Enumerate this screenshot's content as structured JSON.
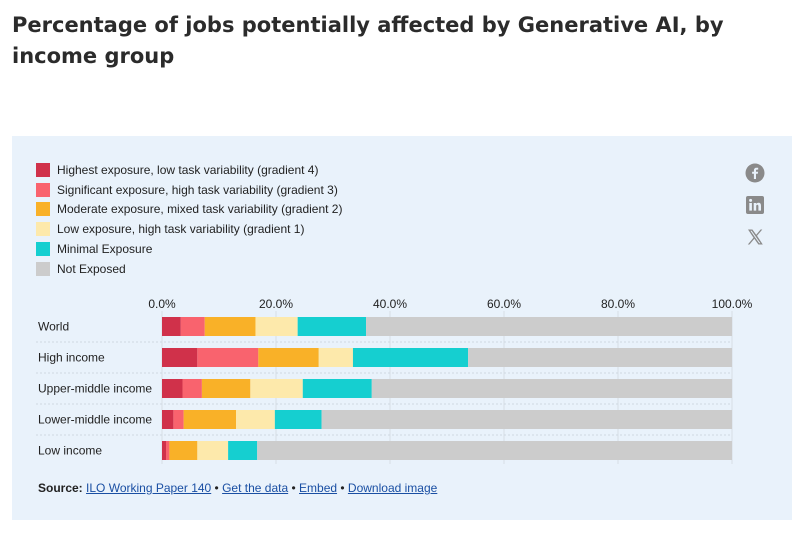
{
  "page_title": "Percentage of jobs potentially affected by Generative AI, by income group",
  "share_icons": [
    "facebook-icon",
    "linkedin-icon",
    "x-icon"
  ],
  "source": {
    "label": "Source:",
    "link_paper": "ILO Working Paper 140",
    "sep1": " • ",
    "link_data": "Get the data",
    "sep2": " • ",
    "link_embed": "Embed",
    "sep3": "  • ",
    "link_download": "Download image"
  },
  "chart_data": {
    "type": "bar",
    "orientation": "horizontal",
    "stacked": true,
    "title": "Percentage of jobs potentially affected by Generative AI, by income group",
    "xlim": [
      0,
      100
    ],
    "x_ticks": [
      "0.0%",
      "20.0%",
      "40.0%",
      "60.0%",
      "80.0%",
      "100.0%"
    ],
    "grid": true,
    "legend_position": "top-left",
    "categories": [
      "World",
      "High income",
      "Upper-middle income",
      "Lower-middle income",
      "Low income"
    ],
    "series": [
      {
        "name": "Highest exposure, low task variability (gradient 4)",
        "color": "#d0314a",
        "values": [
          3.3,
          6.2,
          3.6,
          2.0,
          0.7
        ]
      },
      {
        "name": "Significant exposure, high task variability (gradient 3)",
        "color": "#f9636e",
        "values": [
          4.2,
          10.7,
          3.4,
          1.8,
          0.6
        ]
      },
      {
        "name": "Moderate exposure, mixed task variability (gradient 2)",
        "color": "#f9b128",
        "values": [
          8.9,
          10.6,
          8.5,
          9.2,
          4.9
        ]
      },
      {
        "name": "Low exposure, high task variability (gradient 1)",
        "color": "#fde9ab",
        "values": [
          7.4,
          6.0,
          9.2,
          6.8,
          5.4
        ]
      },
      {
        "name": "Minimal Exposure",
        "color": "#15cfd0",
        "values": [
          12.0,
          20.2,
          12.1,
          8.2,
          5.1
        ]
      },
      {
        "name": "Not Exposed",
        "color": "#cccccc",
        "values": [
          64.2,
          46.3,
          63.2,
          72.0,
          83.3
        ]
      }
    ]
  }
}
